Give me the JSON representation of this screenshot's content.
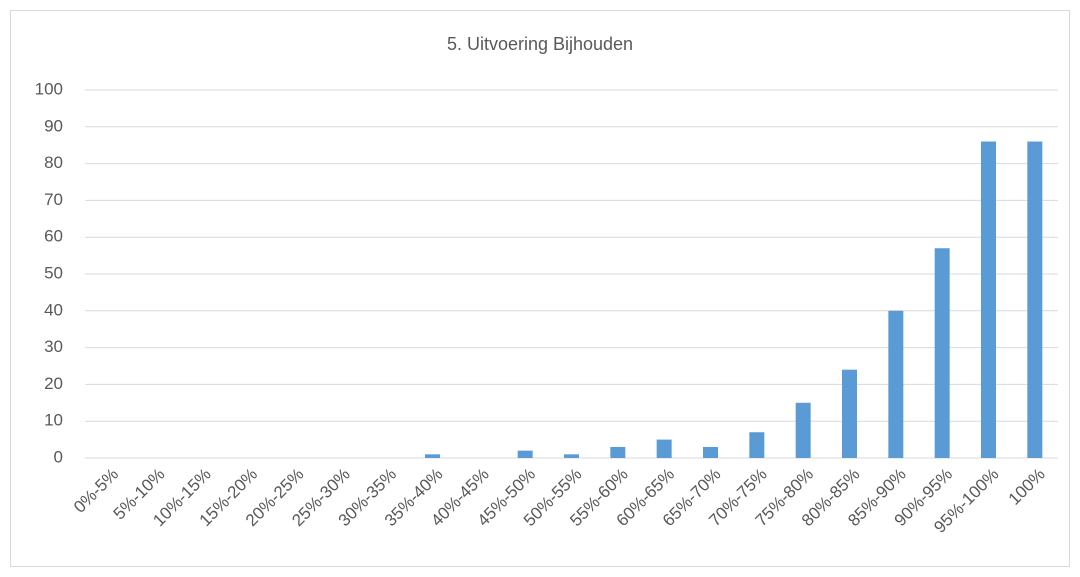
{
  "chart_data": {
    "type": "bar",
    "title": "5. Uitvoering Bijhouden",
    "categories": [
      "0%-5%",
      "5%-10%",
      "10%-15%",
      "15%-20%",
      "20%-25%",
      "25%-30%",
      "30%-35%",
      "35%-40%",
      "40%-45%",
      "45%-50%",
      "50%-55%",
      "55%-60%",
      "60%-65%",
      "65%-70%",
      "70%-75%",
      "75%-80%",
      "80%-85%",
      "85%-90%",
      "90%-95%",
      "95%-100%",
      "100%"
    ],
    "values": [
      0,
      0,
      0,
      0,
      0,
      0,
      0,
      1,
      0,
      2,
      1,
      3,
      5,
      3,
      7,
      15,
      24,
      40,
      57,
      86,
      86
    ],
    "color": "#5b9bd5",
    "ylim": [
      0,
      100
    ],
    "yticks": [
      0,
      10,
      20,
      30,
      40,
      50,
      60,
      70,
      80,
      90,
      100
    ],
    "grid": true
  }
}
